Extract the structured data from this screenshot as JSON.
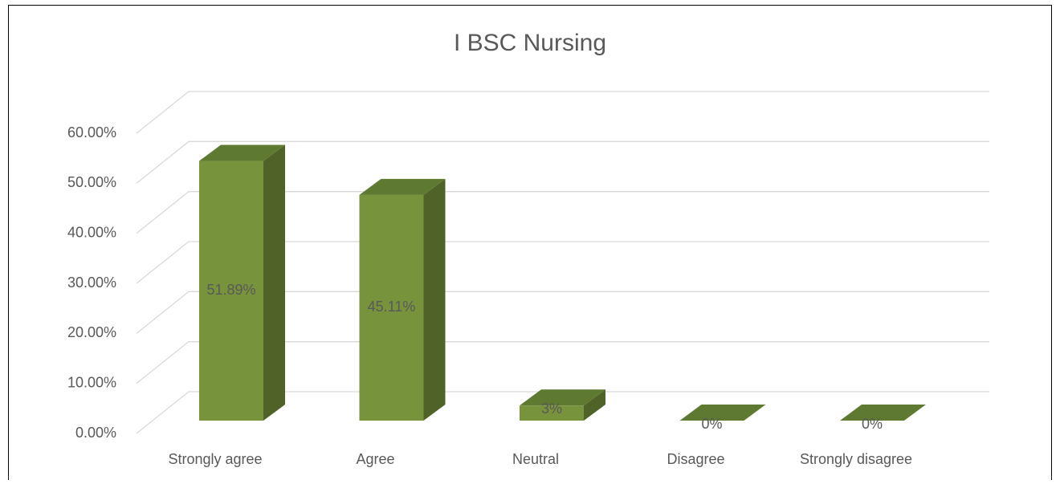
{
  "chart_data": {
    "type": "bar3d",
    "title": "I BSC Nursing",
    "categories": [
      "Strongly agree",
      "Agree",
      "Neutral",
      "Disagree",
      "Strongly disagree"
    ],
    "values": [
      51.89,
      45.11,
      3,
      0,
      0
    ],
    "value_labels": [
      "51.89%",
      "45.11%",
      "3%",
      "0%",
      "0%"
    ],
    "color": "#77933c",
    "ylim": [
      0,
      60
    ],
    "yticks": [
      {
        "value": 0,
        "label": "0.00%"
      },
      {
        "value": 10,
        "label": "10.00%"
      },
      {
        "value": 20,
        "label": "20.00%"
      },
      {
        "value": 30,
        "label": "30.00%"
      },
      {
        "value": 40,
        "label": "40.00%"
      },
      {
        "value": 50,
        "label": "50.00%"
      },
      {
        "value": 60,
        "label": "60.00%"
      }
    ],
    "grid": true
  }
}
